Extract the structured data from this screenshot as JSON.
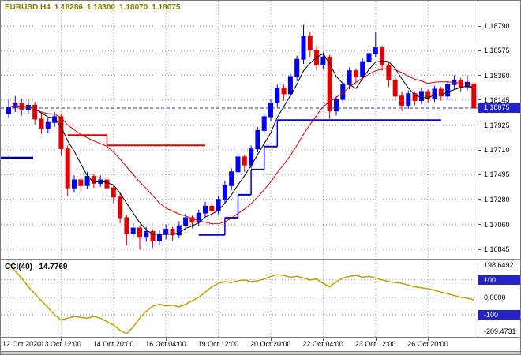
{
  "header": {
    "symbol_period": "EURUSD,H4",
    "open": "1.18286",
    "high": "1.18300",
    "low": "1.18070",
    "close": "1.18075"
  },
  "indicator": {
    "label": "CCI(40)",
    "value": "-14.7769"
  },
  "chart_data": {
    "type": "candlestick",
    "symbol": "EURUSD",
    "timeframe": "H4",
    "colors": {
      "up": "#0000EE",
      "down": "#E00000",
      "ma_fast": "#000000",
      "ma_slow": "#E00000",
      "step_up": "#0000EE",
      "step_down": "#E00000",
      "left_line": "#000080",
      "cci_line": "#C0A000",
      "scale_box": "#2323C8",
      "header_text": "#808000",
      "current_price_line": "#3333CC"
    },
    "price_axis": {
      "max": 1.1879,
      "min": 1.16845,
      "labels": [
        "1.18790",
        "1.18575",
        "1.18360",
        "1.18145",
        "1.17925",
        "1.17710",
        "1.17495",
        "1.17280",
        "1.17060",
        "1.16845"
      ]
    },
    "current_price": {
      "value": "1.18075",
      "price": 1.18075
    },
    "time_axis": {
      "labels": [
        {
          "text": "12 Oct 2020",
          "bar": 0
        },
        {
          "text": "13 Oct 12:00",
          "bar": 8
        },
        {
          "text": "14 Oct 20:00",
          "bar": 16
        },
        {
          "text": "16 Oct 04:00",
          "bar": 24
        },
        {
          "text": "19 Oct 12:00",
          "bar": 32
        },
        {
          "text": "20 Oct 20:00",
          "bar": 40
        },
        {
          "text": "22 Oct 04:00",
          "bar": 48
        },
        {
          "text": "23 Oct 12:00",
          "bar": 56
        },
        {
          "text": "26 Oct 20:00",
          "bar": 64
        }
      ]
    },
    "candles": [
      [
        1.1803,
        1.1815,
        1.1799,
        1.1808
      ],
      [
        1.1808,
        1.1818,
        1.1804,
        1.1812
      ],
      [
        1.1812,
        1.1816,
        1.1801,
        1.1806
      ],
      [
        1.1806,
        1.1815,
        1.1802,
        1.181
      ],
      [
        1.181,
        1.1813,
        1.1793,
        1.1798
      ],
      [
        1.1798,
        1.1802,
        1.1785,
        1.179
      ],
      [
        1.179,
        1.1799,
        1.1786,
        1.1795
      ],
      [
        1.1795,
        1.1804,
        1.1791,
        1.18
      ],
      [
        1.18,
        1.1803,
        1.1766,
        1.1772
      ],
      [
        1.1772,
        1.1775,
        1.1731,
        1.1738
      ],
      [
        1.1738,
        1.1749,
        1.1734,
        1.1745
      ],
      [
        1.1745,
        1.1748,
        1.1735,
        1.174
      ],
      [
        1.174,
        1.1752,
        1.1737,
        1.1748
      ],
      [
        1.1748,
        1.175,
        1.1738,
        1.1742
      ],
      [
        1.1742,
        1.1749,
        1.1739,
        1.1745
      ],
      [
        1.1745,
        1.1747,
        1.1733,
        1.1738
      ],
      [
        1.1738,
        1.1741,
        1.1725,
        1.173
      ],
      [
        1.173,
        1.1733,
        1.1707,
        1.1712
      ],
      [
        1.1712,
        1.1714,
        1.1688,
        1.1698
      ],
      [
        1.1698,
        1.1707,
        1.1694,
        1.1703
      ],
      [
        1.1703,
        1.1705,
        1.16845,
        1.1695
      ],
      [
        1.1695,
        1.1704,
        1.1691,
        1.17
      ],
      [
        1.17,
        1.1702,
        1.1686,
        1.1692
      ],
      [
        1.1692,
        1.1701,
        1.1688,
        1.1698
      ],
      [
        1.1698,
        1.1706,
        1.1693,
        1.1702
      ],
      [
        1.1702,
        1.1704,
        1.1692,
        1.1697
      ],
      [
        1.1697,
        1.1709,
        1.1694,
        1.1705
      ],
      [
        1.1705,
        1.1716,
        1.1701,
        1.1712
      ],
      [
        1.1712,
        1.1714,
        1.1703,
        1.1708
      ],
      [
        1.1708,
        1.1719,
        1.1705,
        1.1716
      ],
      [
        1.1716,
        1.1726,
        1.1712,
        1.1722
      ],
      [
        1.1722,
        1.1725,
        1.1713,
        1.1718
      ],
      [
        1.1718,
        1.1731,
        1.1715,
        1.1728
      ],
      [
        1.1728,
        1.1744,
        1.1725,
        1.174
      ],
      [
        1.174,
        1.1755,
        1.1736,
        1.1752
      ],
      [
        1.1752,
        1.1768,
        1.1749,
        1.1765
      ],
      [
        1.1765,
        1.1767,
        1.1752,
        1.1758
      ],
      [
        1.1758,
        1.1775,
        1.1755,
        1.1772
      ],
      [
        1.1772,
        1.1791,
        1.1769,
        1.1788
      ],
      [
        1.1788,
        1.1803,
        1.1785,
        1.18
      ],
      [
        1.18,
        1.1815,
        1.1796,
        1.1812
      ],
      [
        1.1812,
        1.1828,
        1.1808,
        1.1825
      ],
      [
        1.1825,
        1.1828,
        1.1814,
        1.182
      ],
      [
        1.182,
        1.1838,
        1.1817,
        1.1835
      ],
      [
        1.1835,
        1.1853,
        1.1831,
        1.185
      ],
      [
        1.185,
        1.188,
        1.1846,
        1.187
      ],
      [
        1.187,
        1.1874,
        1.1852,
        1.1858
      ],
      [
        1.1858,
        1.1862,
        1.184,
        1.1845
      ],
      [
        1.1845,
        1.1856,
        1.1841,
        1.1852
      ],
      [
        1.1852,
        1.1854,
        1.1798,
        1.1805
      ],
      [
        1.1805,
        1.1818,
        1.1801,
        1.1815
      ],
      [
        1.1815,
        1.1831,
        1.1812,
        1.1828
      ],
      [
        1.1828,
        1.1843,
        1.1824,
        1.184
      ],
      [
        1.184,
        1.1842,
        1.183,
        1.1835
      ],
      [
        1.1835,
        1.1851,
        1.1832,
        1.1848
      ],
      [
        1.1848,
        1.186,
        1.1844,
        1.1855
      ],
      [
        1.1855,
        1.1874,
        1.1852,
        1.186
      ],
      [
        1.186,
        1.1862,
        1.184,
        1.1845
      ],
      [
        1.1845,
        1.1848,
        1.1826,
        1.1832
      ],
      [
        1.1832,
        1.1835,
        1.1814,
        1.1818
      ],
      [
        1.1818,
        1.1822,
        1.1805,
        1.181
      ],
      [
        1.181,
        1.1823,
        1.1807,
        1.182
      ],
      [
        1.182,
        1.1822,
        1.181,
        1.1814
      ],
      [
        1.1814,
        1.1825,
        1.1811,
        1.1822
      ],
      [
        1.1822,
        1.1824,
        1.1812,
        1.1816
      ],
      [
        1.1816,
        1.1827,
        1.1813,
        1.1824
      ],
      [
        1.1824,
        1.1826,
        1.1814,
        1.1818
      ],
      [
        1.1818,
        1.1831,
        1.1815,
        1.1828
      ],
      [
        1.1828,
        1.1836,
        1.1824,
        1.1832
      ],
      [
        1.1832,
        1.1834,
        1.1822,
        1.1826
      ],
      [
        1.1826,
        1.1836,
        1.1823,
        1.183
      ],
      [
        1.18286,
        1.183,
        1.1807,
        1.18075
      ]
    ],
    "overlays": {
      "ma_fast": {
        "period": 5,
        "color": "#000000"
      },
      "ma_slow": {
        "period": 16,
        "color": "#E00000"
      },
      "red_steps": [
        {
          "from": 9,
          "to": 15,
          "price": 1.1784
        },
        {
          "from": 15,
          "to": 30,
          "price": 1.1775
        }
      ],
      "blue_steps": [
        {
          "from": 29,
          "to": 33,
          "price": 1.1697
        },
        {
          "from": 33,
          "to": 35,
          "price": 1.1712
        },
        {
          "from": 35,
          "to": 37,
          "price": 1.1732
        },
        {
          "from": 37,
          "to": 39,
          "price": 1.1754
        },
        {
          "from": 39,
          "to": 41,
          "price": 1.1774
        },
        {
          "from": 41,
          "to": 66,
          "price": 1.1797
        }
      ],
      "left_hline": {
        "from": 0,
        "to": 3,
        "price": 1.1764
      }
    },
    "cci": {
      "name": "CCI",
      "period": 40,
      "last": -14.7769,
      "max": 198.6492,
      "min": -209.4731,
      "max_label": "198.6492",
      "min_label": "-209.4731",
      "levels": [
        {
          "label": "100",
          "value": 100,
          "boxed": true
        },
        {
          "label": "0.0000",
          "value": 0,
          "boxed": false
        },
        {
          "label": "-100",
          "value": -100,
          "boxed": true
        }
      ],
      "values": [
        198.6492,
        150,
        110,
        60,
        20,
        -20,
        -60,
        -100,
        -130,
        -120,
        -110,
        -115,
        -120,
        -110,
        -120,
        -140,
        -160,
        -190,
        -209.4731,
        -170,
        -120,
        -80,
        -50,
        -40,
        -50,
        -45,
        -55,
        -40,
        -20,
        0,
        30,
        60,
        80,
        90,
        85,
        95,
        100,
        90,
        95,
        105,
        120,
        130,
        125,
        115,
        120,
        110,
        100,
        105,
        80,
        60,
        90,
        110,
        120,
        125,
        115,
        120,
        110,
        100,
        90,
        85,
        80,
        70,
        60,
        55,
        50,
        40,
        30,
        20,
        10,
        0,
        -5,
        -14.7769
      ]
    }
  }
}
